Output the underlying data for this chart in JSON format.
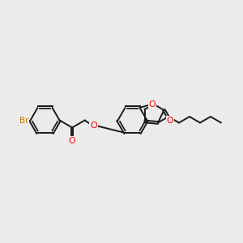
{
  "bg_color": "#ebebeb",
  "bond_color": "#1a1a1a",
  "oxygen_color": "#ff0000",
  "bromine_color": "#cc7700",
  "line_width": 1.4,
  "figsize": [
    3.0,
    3.0
  ],
  "dpi": 100,
  "xlim": [
    0.0,
    10.0
  ],
  "ylim": [
    2.5,
    7.5
  ]
}
